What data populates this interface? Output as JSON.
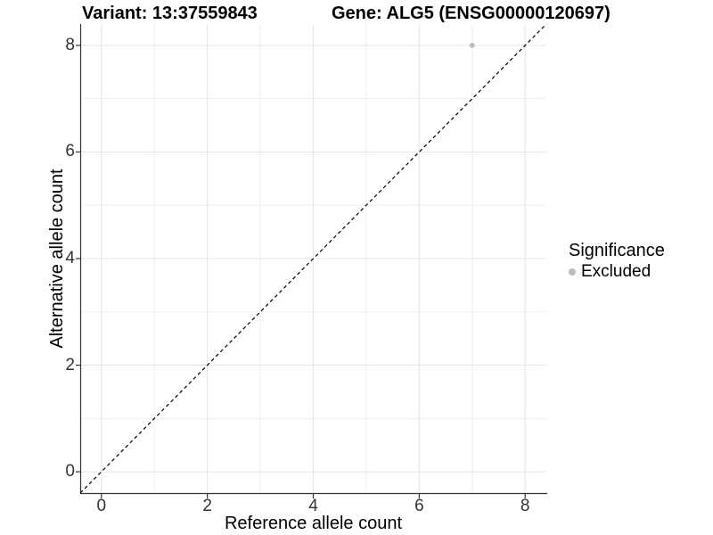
{
  "header": {
    "variant_label": "Variant: 13:37559843",
    "gene_label": "Gene: ALG5 (ENSG00000120697)"
  },
  "chart_data": {
    "type": "scatter",
    "title": "Variant: 13:37559843    Gene: ALG5 (ENSG00000120697)",
    "xlabel": "Reference allele count",
    "ylabel": "Alternative allele count",
    "xlim": [
      -0.4,
      8.4
    ],
    "ylim": [
      -0.4,
      8.4
    ],
    "x_ticks": [
      0,
      2,
      4,
      6,
      8
    ],
    "y_ticks": [
      0,
      2,
      4,
      6,
      8
    ],
    "x_minor_ticks": [
      1,
      3,
      5,
      7
    ],
    "y_minor_ticks": [
      1,
      3,
      5,
      7
    ],
    "grid": "on",
    "series": [
      {
        "name": "Excluded",
        "type": "scatter",
        "color": "#bebebe",
        "points": [
          [
            7,
            8
          ]
        ]
      }
    ],
    "reference_line": {
      "kind": "identity",
      "from": [
        -0.4,
        -0.4
      ],
      "to": [
        8.4,
        8.4
      ],
      "style": "dashed",
      "color": "#000000"
    },
    "legend": {
      "title": "Significance",
      "position": "right",
      "entries": [
        {
          "label": "Excluded",
          "color": "#bdbdbd",
          "marker": "circle"
        }
      ]
    }
  },
  "colors": {
    "background": "#ffffff",
    "grid_major": "#e5e5e5",
    "grid_minor": "#f0f0f0",
    "axis_line": "#333333",
    "tick_mark": "#333333",
    "tick_label": "#333333",
    "title_text": "#000000",
    "point": "#bebebe",
    "reference_line": "#000000",
    "legend_dot": "#bdbdbd"
  }
}
